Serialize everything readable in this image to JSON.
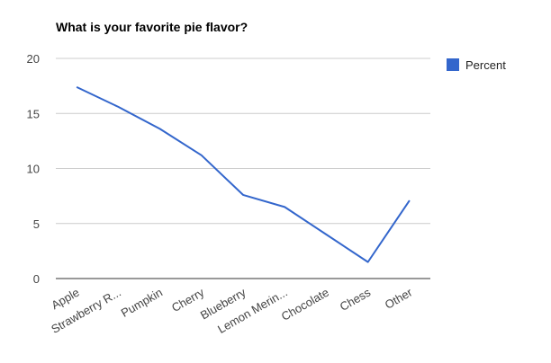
{
  "chart_data": {
    "type": "line",
    "title": "What is your favorite pie flavor?",
    "categories": [
      "Apple",
      "Strawberry R...",
      "Pumpkin",
      "Cherry",
      "Blueberry",
      "Lemon Merin...",
      "Chocolate",
      "Chess",
      "Other"
    ],
    "series": [
      {
        "name": "Percent",
        "values": [
          17.4,
          15.6,
          13.6,
          11.2,
          7.6,
          6.5,
          4.0,
          1.5,
          7.1
        ],
        "color": "#3366cc"
      }
    ],
    "yticks": [
      "0",
      "5",
      "10",
      "15",
      "20"
    ],
    "ylim": [
      0,
      20
    ],
    "xlabel": "",
    "ylabel": "",
    "grid": true,
    "legend_position": "right"
  }
}
